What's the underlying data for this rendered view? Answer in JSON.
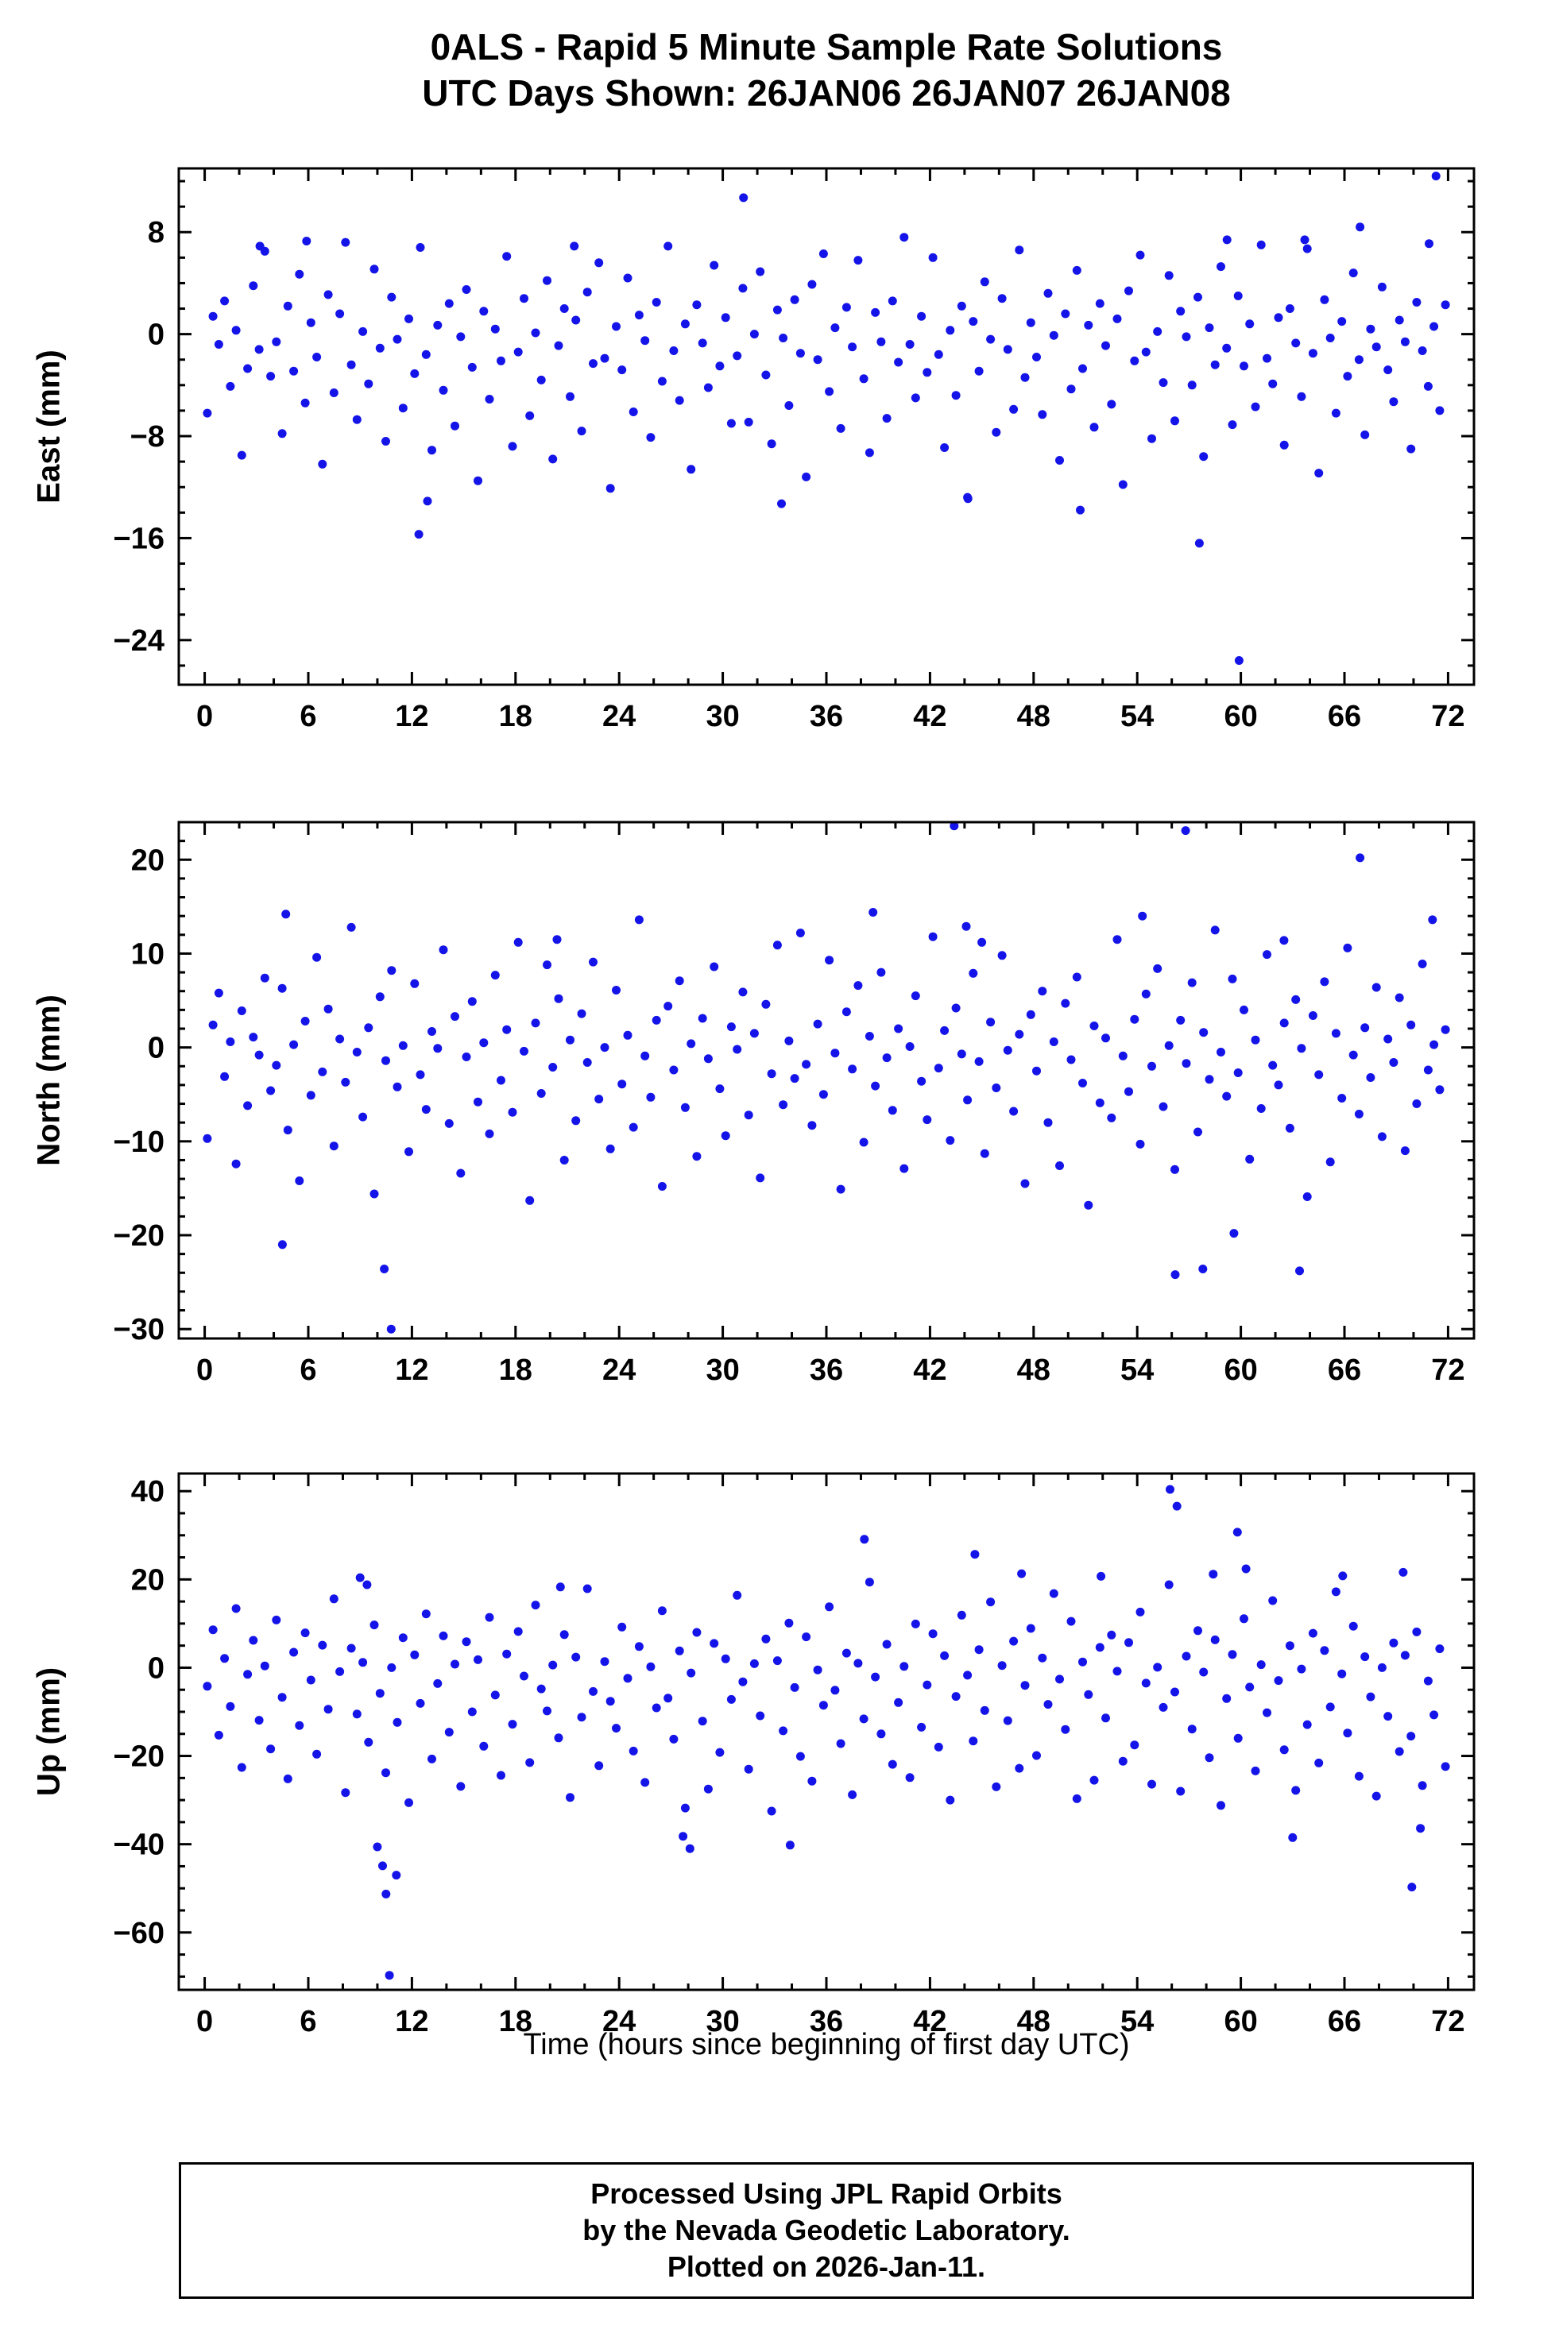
{
  "title": {
    "line1": "0ALS - Rapid 5 Minute Sample Rate Solutions",
    "line2": "UTC Days Shown:  26JAN06 26JAN07 26JAN08"
  },
  "xlabel": "Time (hours since beginning of first day UTC)",
  "footer": {
    "line1": "Processed Using JPL Rapid Orbits",
    "line2": "by the Nevada Geodetic Laboratory.",
    "line3": "Plotted on 2026-Jan-11."
  },
  "marker_color": "#1414e8",
  "chart_data": [
    {
      "type": "scatter",
      "name": "East",
      "ylabel": "East (mm)",
      "grid": false,
      "xlim": [
        -1.5,
        73.5
      ],
      "ylim": [
        -27.5,
        13
      ],
      "xticks": [
        0,
        6,
        12,
        18,
        24,
        30,
        36,
        42,
        48,
        54,
        60,
        66,
        72
      ],
      "xminor": 2,
      "yticks": [
        -24,
        -16,
        -8,
        0,
        8
      ],
      "yminor": 2,
      "series": {
        "x_start": 0.15,
        "x_end": 71.85,
        "y": [
          -6.2,
          1.4,
          -0.8,
          2.6,
          -4.1,
          0.3,
          -9.5,
          -2.7,
          3.8,
          -1.2,
          6.5,
          -3.3,
          -0.6,
          -7.8,
          2.2,
          -2.9,
          4.7,
          -5.4,
          0.9,
          -1.8,
          -10.2,
          3.1,
          -4.6,
          1.6,
          7.2,
          -2.4,
          -6.7,
          0.2,
          -3.9,
          5.1,
          -1.1,
          -8.4,
          2.9,
          -0.4,
          -5.8,
          1.2,
          -3.1,
          6.8,
          -1.6,
          -9.1,
          0.7,
          -4.4,
          2.4,
          -7.2,
          -0.2,
          3.5,
          -2.6,
          -11.5,
          1.8,
          -5.1,
          0.4,
          -2.1,
          6.1,
          -8.8,
          -1.4,
          2.8,
          -6.4,
          0.1,
          -3.6,
          4.2,
          -9.8,
          -0.9,
          2.0,
          -4.9,
          1.1,
          -7.6,
          3.3,
          -2.3,
          5.6,
          -1.9,
          -12.1,
          0.6,
          -2.8,
          4.4,
          -6.1,
          1.5,
          -0.5,
          -8.1,
          2.5,
          -3.7,
          6.9,
          -1.3,
          -5.2,
          0.8,
          -10.6,
          2.3,
          -0.7,
          -4.2,
          5.4,
          -2.5,
          1.3,
          -7.0,
          -1.7,
          3.6,
          -6.9,
          0.0,
          4.9,
          -3.2,
          -8.6,
          1.9,
          -0.3,
          -5.6,
          2.7,
          -1.5,
          -11.2,
          3.9,
          -2.0,
          6.3,
          -4.5,
          0.5,
          -7.4,
          2.1,
          -1.0,
          5.8,
          -3.5,
          -9.3,
          1.7,
          -0.6,
          -6.6,
          2.6,
          -2.2,
          7.6,
          -0.8,
          -5.0,
          1.4,
          -3.0,
          6.0,
          -1.6,
          -8.9,
          0.3,
          -4.8,
          2.2,
          -12.8,
          1.0,
          -2.9,
          4.1,
          -0.4,
          -7.7,
          2.8,
          -1.2,
          -5.9,
          6.6,
          -3.4,
          0.9,
          -1.8,
          -6.3,
          3.2,
          -0.1,
          -9.9,
          1.6,
          -4.3,
          5.0,
          -2.7,
          0.7,
          -7.3,
          2.4,
          -0.9,
          -5.5,
          1.2,
          -11.8,
          3.4,
          -2.1,
          6.2,
          -1.4,
          -8.2,
          0.2,
          -3.8,
          4.6,
          -6.8,
          1.8,
          -0.2,
          -4.0,
          2.9,
          -9.6,
          0.5,
          -2.4,
          5.3,
          -1.1,
          -7.1,
          3.0,
          -2.5,
          0.8,
          -5.7,
          7.0,
          -1.9,
          -3.9,
          1.3,
          -8.7,
          2.0,
          -0.7,
          -4.9,
          6.7,
          -1.5,
          -10.9,
          2.7,
          -0.3,
          -6.2,
          1.0,
          -3.3,
          4.8,
          -2.0,
          -7.9,
          0.4,
          -1.0,
          3.7,
          -2.8,
          -5.3,
          1.1,
          -0.6,
          -9.0,
          2.5,
          -1.3,
          -4.1,
          0.6,
          -6.0,
          2.3
        ],
        "extra": [
          [
            12.4,
            -15.7
          ],
          [
            12.9,
            -13.1
          ],
          [
            31.2,
            10.7
          ],
          [
            33.4,
            -13.3
          ],
          [
            44.2,
            -12.9
          ],
          [
            50.7,
            -13.8
          ],
          [
            57.6,
            -16.4
          ],
          [
            59.9,
            -25.6
          ],
          [
            66.9,
            8.4
          ],
          [
            71.3,
            12.4
          ],
          [
            70.9,
            7.1
          ],
          [
            63.7,
            7.4
          ],
          [
            21.4,
            6.9
          ],
          [
            3.2,
            6.9
          ],
          [
            5.9,
            7.3
          ],
          [
            59.2,
            7.4
          ]
        ]
      }
    },
    {
      "type": "scatter",
      "name": "North",
      "ylabel": "North (mm)",
      "grid": false,
      "xlim": [
        -1.5,
        73.5
      ],
      "ylim": [
        -31,
        24
      ],
      "xticks": [
        0,
        6,
        12,
        18,
        24,
        30,
        36,
        42,
        48,
        54,
        60,
        66,
        72
      ],
      "xminor": 2,
      "yticks": [
        -30,
        -20,
        -10,
        0,
        10,
        20
      ],
      "yminor": 2,
      "series": {
        "x_start": 0.15,
        "x_end": 71.85,
        "y": [
          -9.7,
          2.4,
          5.8,
          -3.1,
          0.6,
          -12.4,
          3.9,
          -6.2,
          1.1,
          -0.8,
          7.4,
          -4.6,
          -1.9,
          6.3,
          -8.8,
          0.3,
          -14.2,
          2.8,
          -5.1,
          9.6,
          -2.6,
          4.1,
          -10.5,
          0.9,
          -3.7,
          12.8,
          -0.5,
          -7.4,
          2.1,
          -15.6,
          5.4,
          -1.4,
          8.2,
          -4.2,
          0.2,
          -11.1,
          6.8,
          -2.9,
          -6.6,
          1.7,
          -0.1,
          10.4,
          -8.1,
          3.3,
          -13.4,
          -1.0,
          4.9,
          -5.8,
          0.5,
          -9.2,
          7.7,
          -3.5,
          1.9,
          -6.9,
          11.2,
          -0.4,
          -16.3,
          2.6,
          -4.9,
          8.8,
          -2.1,
          5.2,
          -12.0,
          0.8,
          -7.8,
          3.6,
          -1.6,
          9.1,
          -5.5,
          0.0,
          -10.8,
          6.1,
          -3.9,
          1.3,
          -8.5,
          13.6,
          -0.9,
          -5.3,
          2.9,
          -14.8,
          4.4,
          -2.4,
          7.1,
          -6.4,
          0.4,
          -11.6,
          3.1,
          -1.2,
          8.6,
          -4.4,
          -9.4,
          2.2,
          -0.2,
          5.9,
          -7.2,
          1.5,
          -13.9,
          4.6,
          -2.8,
          10.9,
          -6.1,
          0.7,
          -3.3,
          12.2,
          -1.8,
          -8.3,
          2.5,
          -5.0,
          9.3,
          -0.6,
          -15.1,
          3.8,
          -2.3,
          6.6,
          -10.1,
          1.2,
          -4.1,
          8.0,
          -1.1,
          -6.7,
          2.0,
          -12.9,
          0.1,
          5.5,
          -3.6,
          -7.7,
          11.8,
          -2.2,
          1.8,
          -9.9,
          4.2,
          -0.7,
          -5.6,
          7.9,
          -1.5,
          -11.3,
          2.7,
          -4.3,
          9.8,
          -0.3,
          -6.8,
          1.4,
          -14.5,
          3.5,
          -2.5,
          6.0,
          -8.0,
          0.6,
          -12.6,
          4.7,
          -1.3,
          7.5,
          -3.8,
          -16.8,
          2.3,
          -5.9,
          1.0,
          -7.5,
          11.5,
          -0.9,
          -4.7,
          3.0,
          -10.3,
          5.7,
          -2.0,
          8.4,
          -6.3,
          0.2,
          -13.0,
          2.9,
          -1.7,
          6.9,
          -9.0,
          1.6,
          -3.4,
          12.5,
          -0.5,
          -5.2,
          7.3,
          -2.7,
          4.0,
          -11.9,
          0.8,
          -6.5,
          9.9,
          -1.9,
          -4.0,
          2.6,
          -8.6,
          5.1,
          -0.1,
          -15.9,
          3.4,
          -2.9,
          7.0,
          -12.2,
          1.5,
          -5.4,
          10.6,
          -0.8,
          -7.1,
          2.1,
          -3.2,
          6.4,
          -9.5,
          0.9,
          -1.6,
          5.3,
          -11.0,
          2.4,
          -6.0,
          8.9,
          -2.4,
          0.3,
          -4.5,
          1.9
        ],
        "extra": [
          [
            4.7,
            14.2
          ],
          [
            4.5,
            -21.0
          ],
          [
            10.4,
            -23.6
          ],
          [
            10.8,
            -30.0
          ],
          [
            20.4,
            11.5
          ],
          [
            38.7,
            14.4
          ],
          [
            43.4,
            23.6
          ],
          [
            44.1,
            12.9
          ],
          [
            45.0,
            11.2
          ],
          [
            54.3,
            14.0
          ],
          [
            56.8,
            23.1
          ],
          [
            56.2,
            -24.2
          ],
          [
            57.8,
            -23.6
          ],
          [
            59.6,
            -19.8
          ],
          [
            63.4,
            -23.8
          ],
          [
            66.9,
            20.2
          ],
          [
            71.1,
            13.6
          ],
          [
            62.5,
            11.4
          ]
        ]
      }
    },
    {
      "type": "scatter",
      "name": "Up",
      "ylabel": "Up (mm)",
      "grid": false,
      "xlim": [
        -1.5,
        73.5
      ],
      "ylim": [
        -73,
        44
      ],
      "xticks": [
        0,
        6,
        12,
        18,
        24,
        30,
        36,
        42,
        48,
        54,
        60,
        66,
        72
      ],
      "xminor": 2,
      "yticks": [
        -60,
        -40,
        -20,
        0,
        20,
        40
      ],
      "yminor": 5,
      "series": {
        "x_start": 0.15,
        "x_end": 71.85,
        "y": [
          -4.2,
          8.6,
          -15.3,
          2.1,
          -8.8,
          13.4,
          -22.6,
          -1.5,
          6.2,
          -11.9,
          0.4,
          -18.4,
          10.8,
          -6.7,
          -25.2,
          3.5,
          -13.1,
          7.9,
          -2.8,
          -19.6,
          5.1,
          -9.4,
          15.6,
          -0.9,
          -28.3,
          4.4,
          -10.5,
          1.2,
          -16.9,
          9.7,
          -5.8,
          -23.8,
          0.0,
          -12.4,
          6.8,
          -30.6,
          2.9,
          -8.1,
          12.2,
          -20.7,
          -3.6,
          7.2,
          -14.6,
          0.8,
          -26.9,
          5.9,
          -10.0,
          1.8,
          -17.8,
          11.4,
          -6.2,
          -24.4,
          3.1,
          -12.8,
          8.2,
          -1.9,
          -21.5,
          14.2,
          -4.8,
          -9.8,
          0.6,
          -15.9,
          7.5,
          -29.4,
          2.4,
          -11.2,
          17.9,
          -5.4,
          -22.2,
          1.4,
          -7.6,
          -13.7,
          9.2,
          -2.4,
          -18.9,
          4.8,
          -26.0,
          0.2,
          -9.1,
          12.9,
          -6.9,
          -16.2,
          3.8,
          -31.8,
          -1.2,
          8.0,
          -12.1,
          -27.5,
          5.5,
          -19.2,
          2.0,
          -7.2,
          16.4,
          -3.2,
          -23.0,
          0.9,
          -10.9,
          6.5,
          -32.5,
          1.6,
          -14.3,
          10.1,
          -4.5,
          -20.1,
          7.0,
          -25.7,
          -0.5,
          -8.5,
          13.8,
          -5.1,
          -17.2,
          3.3,
          -28.8,
          1.0,
          -11.6,
          19.4,
          -2.1,
          -15.0,
          5.3,
          -21.9,
          -7.9,
          0.3,
          -24.9,
          9.9,
          -13.5,
          -3.9,
          7.7,
          -18.0,
          2.7,
          -30.0,
          -6.5,
          11.9,
          -1.7,
          -16.6,
          4.1,
          -9.7,
          14.9,
          -27.0,
          0.5,
          -12.0,
          6.0,
          -22.8,
          -4.0,
          8.9,
          -19.9,
          2.2,
          -8.3,
          16.8,
          -2.6,
          -14.0,
          10.5,
          -29.7,
          1.3,
          -6.1,
          -25.5,
          4.6,
          -11.4,
          7.4,
          -0.8,
          -21.2,
          5.7,
          -17.5,
          12.6,
          -3.5,
          -26.4,
          0.1,
          -9.0,
          18.8,
          -5.5,
          -28.0,
          2.6,
          -13.9,
          8.4,
          -1.0,
          -20.4,
          6.3,
          -31.2,
          -7.0,
          3.0,
          -16.0,
          11.1,
          -4.4,
          -23.4,
          0.7,
          -10.2,
          15.2,
          -2.9,
          -18.6,
          5.0,
          -27.8,
          -0.3,
          -12.9,
          7.8,
          -21.6,
          3.9,
          -8.9,
          17.2,
          -1.4,
          -14.8,
          9.4,
          -24.6,
          2.5,
          -6.6,
          -29.1,
          0.0,
          -11.0,
          5.6,
          -19.0,
          2.8,
          -15.5,
          8.1,
          -26.7,
          -3.0,
          -10.7,
          4.3,
          -22.4
        ],
        "extra": [
          [
            9.0,
            20.4
          ],
          [
            9.4,
            18.8
          ],
          [
            10.0,
            -40.6
          ],
          [
            10.3,
            -44.9
          ],
          [
            10.5,
            -51.3
          ],
          [
            10.7,
            -69.7
          ],
          [
            11.1,
            -47.0
          ],
          [
            20.6,
            18.3
          ],
          [
            27.7,
            -38.2
          ],
          [
            28.1,
            -41.0
          ],
          [
            33.9,
            -40.2
          ],
          [
            38.2,
            29.1
          ],
          [
            44.6,
            25.7
          ],
          [
            47.3,
            21.3
          ],
          [
            51.9,
            20.7
          ],
          [
            55.9,
            40.4
          ],
          [
            56.3,
            36.6
          ],
          [
            58.4,
            21.2
          ],
          [
            59.8,
            30.7
          ],
          [
            60.3,
            22.4
          ],
          [
            65.9,
            20.8
          ],
          [
            69.4,
            21.6
          ],
          [
            69.9,
            -49.7
          ],
          [
            70.4,
            -36.4
          ],
          [
            63.0,
            -38.5
          ]
        ]
      }
    }
  ]
}
